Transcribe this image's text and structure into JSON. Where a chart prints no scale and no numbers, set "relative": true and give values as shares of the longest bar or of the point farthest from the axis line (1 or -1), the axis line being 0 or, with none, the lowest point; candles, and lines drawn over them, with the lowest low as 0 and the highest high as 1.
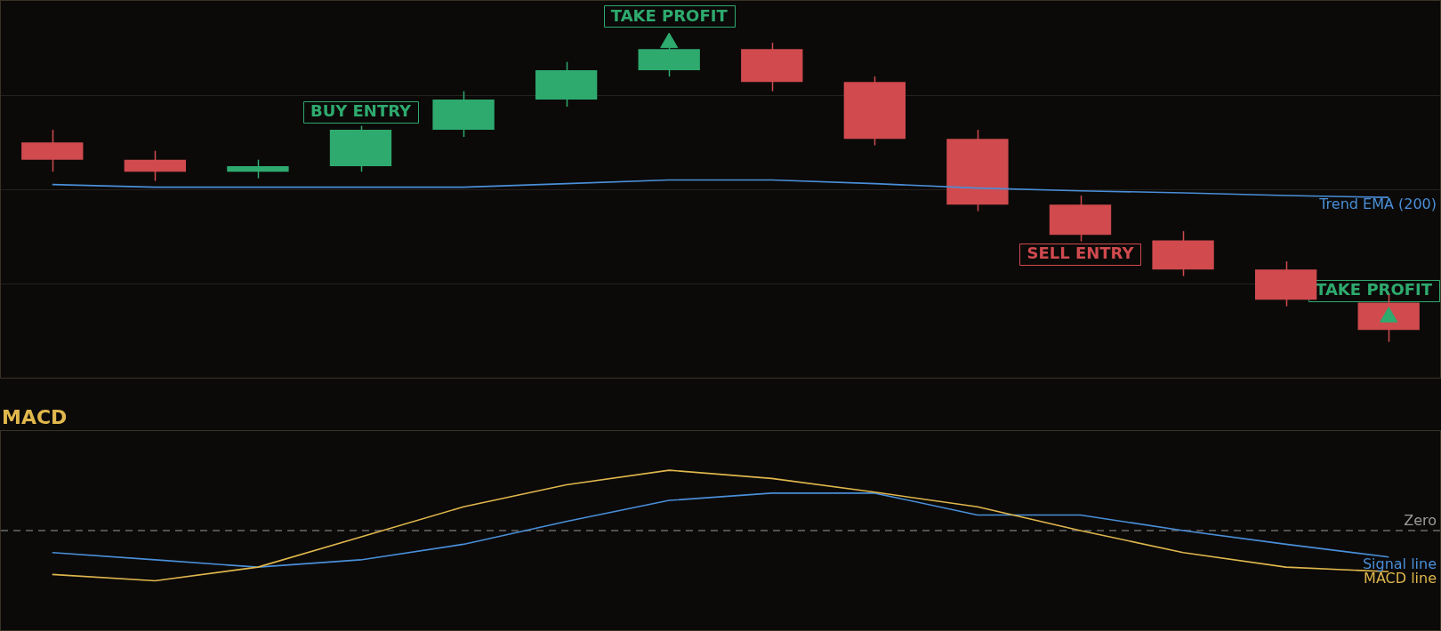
{
  "chart_data": [
    {
      "type": "candlestick",
      "categories": [
        null,
        null,
        null,
        null,
        null,
        null,
        null,
        null,
        null,
        null,
        null,
        null,
        null,
        null
      ],
      "relative": true,
      "grid": "y",
      "legend": false,
      "ohlc": [
        [
          0.667,
          0.709,
          0.569,
          0.609
        ],
        [
          0.609,
          0.639,
          0.538,
          0.569
        ],
        [
          0.569,
          0.609,
          0.547,
          0.587
        ],
        [
          0.587,
          0.722,
          0.569,
          0.709
        ],
        [
          0.709,
          0.838,
          0.685,
          0.81
        ],
        [
          0.81,
          0.936,
          0.786,
          0.908
        ],
        [
          0.908,
          0.994,
          0.887,
          0.979
        ],
        [
          0.979,
          1,
          0.838,
          0.869
        ],
        [
          0.869,
          0.887,
          0.657,
          0.679
        ],
        [
          0.679,
          0.709,
          0.437,
          0.459
        ],
        [
          0.459,
          0.489,
          0.336,
          0.358
        ],
        [
          0.339,
          0.37,
          0.22,
          0.242
        ],
        [
          0.242,
          0.269,
          0.119,
          0.141
        ],
        [
          0.131,
          0.159,
          0,
          0.04
        ]
      ],
      "colors": [
        "#d04a4e",
        "#d04a4e",
        "#2eaa6e",
        "#2eaa6e",
        "#2eaa6e",
        "#2eaa6e",
        "#2eaa6e",
        "#d04a4e",
        "#d04a4e",
        "#d04a4e",
        "#d04a4e",
        "#d04a4e",
        "#d04a4e",
        "#d04a4e"
      ],
      "series": [
        {
          "name": "Trend EMA (200)",
          "type": "line",
          "color": "#4a8fd8",
          "values": [
            0.526,
            0.517,
            0.517,
            0.517,
            0.517,
            0.529,
            0.541,
            0.541,
            0.529,
            0.514,
            0.505,
            0.498,
            0.489,
            0.483
          ]
        },
        {
          "type": "scatter",
          "marker": "triangle",
          "color": "#2eaa6e",
          "values": [
            null,
            null,
            null,
            null,
            null,
            null,
            1,
            null,
            null,
            null,
            null,
            null,
            null,
            0.083
          ]
        }
      ],
      "annotations": [
        {
          "text": "BUY ENTRY",
          "y": 0.722
        },
        {
          "text": "TAKE PROFIT",
          "y": 0.994
        },
        {
          "text": "SELL ENTRY",
          "y": 0.336
        },
        "TAKE PROFIT"
      ]
    },
    {
      "type": "line",
      "title": "MACD",
      "categories": [
        null,
        null,
        null,
        null,
        null,
        null,
        null,
        null,
        null,
        null,
        null,
        null,
        null,
        null
      ],
      "relative": true,
      "legend": false,
      "series": [
        {
          "name": "MACD line",
          "color": "#e0b74c",
          "values": [
            -0.727,
            -0.833,
            -0.606,
            -0.106,
            0.394,
            0.758,
            1,
            0.864,
            0.636,
            0.394,
            0,
            -0.364,
            -0.606,
            -0.682
          ]
        },
        {
          "name": "Signal line",
          "color": "#4a8fd8",
          "values": [
            -0.364,
            -0.485,
            -0.606,
            -0.485,
            -0.227,
            0.152,
            0.5,
            0.621,
            0.621,
            0.258,
            0.258,
            0,
            -0.227,
            -0.439
          ]
        }
      ],
      "ref_lines": [
        {
          "axis": "y",
          "value": 0,
          "label": "Zero",
          "color": "#9a9a9a",
          "line_style": "dashed"
        }
      ]
    }
  ]
}
